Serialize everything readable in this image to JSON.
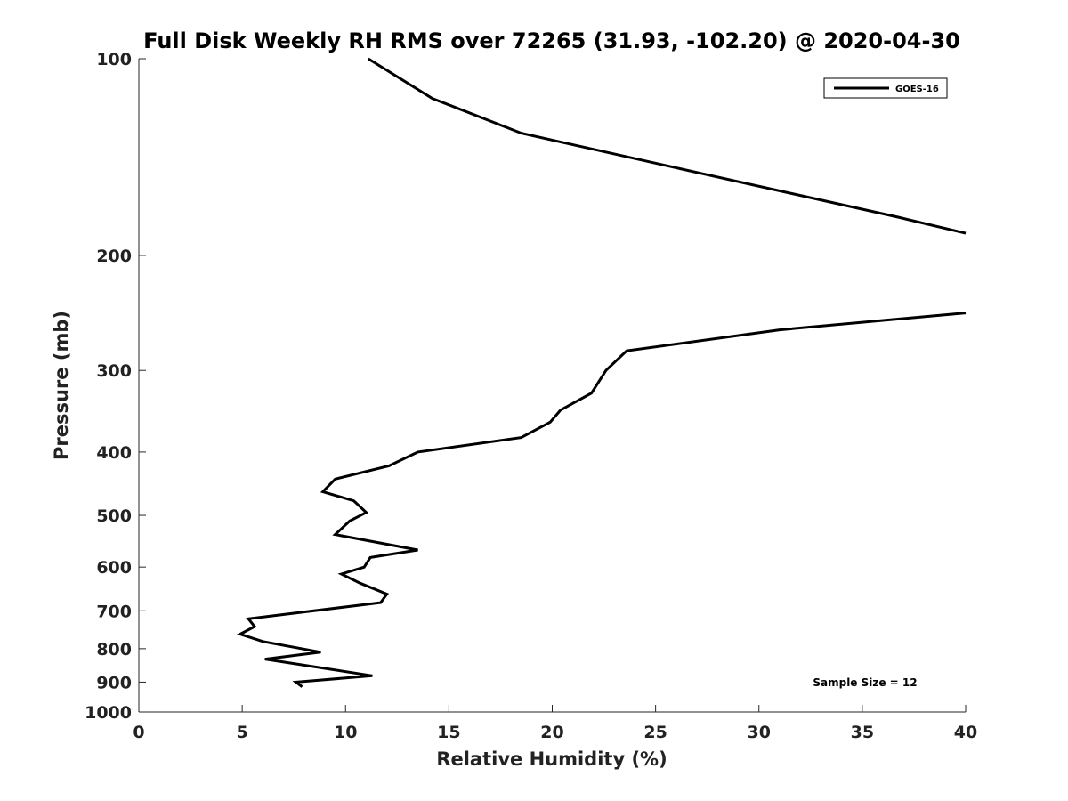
{
  "chart_data": {
    "type": "line",
    "title": "Full Disk Weekly RH RMS over 72265 (31.93, -102.20) @ 2020-04-30",
    "xlabel": "Relative Humidity (%)",
    "ylabel": "Pressure (mb)",
    "xlim": [
      0,
      40
    ],
    "ylim": [
      100,
      1000
    ],
    "yscale": "log",
    "yaxis_inverted": true,
    "grid": false,
    "legend_position": "top-right",
    "x_ticks": [
      0,
      5,
      10,
      15,
      20,
      25,
      30,
      35,
      40
    ],
    "x_tick_labels": [
      "0",
      "5",
      "10",
      "15",
      "20",
      "25",
      "30",
      "35",
      "40"
    ],
    "y_ticks": [
      100,
      200,
      300,
      400,
      500,
      600,
      700,
      800,
      900,
      1000
    ],
    "y_tick_labels": [
      "100",
      "200",
      "300",
      "400",
      "500",
      "600",
      "700",
      "800",
      "900",
      "1000"
    ],
    "annotation": "Sample Size = 12",
    "series": [
      {
        "name": "GOES-16",
        "color": "#000000",
        "segments": [
          {
            "x": [
              11.1,
              14.2,
              18.5,
              27.3,
              36.8,
              40.0
            ],
            "y": [
              100,
              115,
              130,
              150,
              175,
              185
            ]
          },
          {
            "x": [
              40.0,
              31.0,
              23.6,
              22.6,
              21.9,
              20.4,
              19.9,
              18.5,
              13.5,
              12.1,
              9.5,
              8.9,
              10.4,
              11.0,
              10.2,
              9.5,
              13.5,
              11.2,
              10.9,
              9.8,
              10.7,
              12.0,
              11.7,
              5.3,
              5.6,
              4.9,
              6.0,
              8.8,
              6.1,
              11.3,
              7.6,
              7.9
            ],
            "y": [
              245,
              260,
              280,
              300,
              325,
              345,
              360,
              380,
              400,
              420,
              440,
              460,
              475,
              495,
              510,
              535,
              565,
              580,
              600,
              615,
              635,
              660,
              680,
              720,
              740,
              760,
              780,
              810,
              830,
              880,
              900,
              915
            ]
          }
        ]
      }
    ]
  }
}
